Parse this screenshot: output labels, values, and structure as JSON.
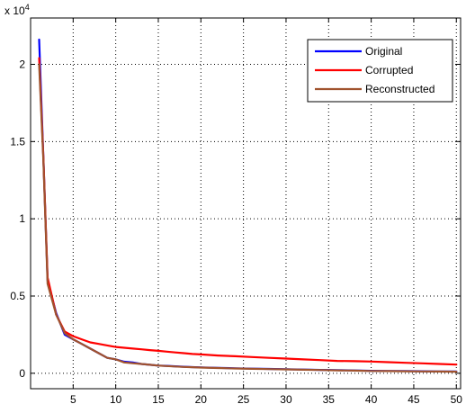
{
  "chart_data": {
    "type": "line",
    "title": "",
    "xlabel": "",
    "ylabel": "",
    "xlim": [
      0,
      50.5
    ],
    "ylim": [
      -1000,
      23000
    ],
    "x_ticks": [
      5,
      10,
      15,
      20,
      25,
      30,
      35,
      40,
      45,
      50
    ],
    "x_tick_labels": [
      "5",
      "10",
      "15",
      "20",
      "25",
      "30",
      "35",
      "40",
      "45",
      "50"
    ],
    "y_ticks": [
      0,
      5000,
      10000,
      15000,
      20000
    ],
    "y_tick_labels": [
      "0",
      "0.5",
      "1",
      "1.5",
      "2"
    ],
    "y_exponent_label": "x 10",
    "y_exponent_power": "4",
    "grid": true,
    "legend_position": "top-right",
    "x": [
      1,
      1.5,
      2,
      3,
      4,
      5,
      6,
      7,
      8,
      9,
      10,
      11,
      12,
      13,
      14,
      15,
      16,
      17,
      18,
      19,
      20,
      22,
      24,
      26,
      28,
      30,
      32,
      34,
      36,
      38,
      40,
      42,
      44,
      46,
      48,
      50
    ],
    "series": [
      {
        "name": "Original",
        "color": "#0000ff",
        "values": [
          21600,
          14000,
          6000,
          3900,
          2500,
          2200,
          1900,
          1600,
          1300,
          1000,
          900,
          750,
          700,
          600,
          550,
          500,
          480,
          450,
          420,
          400,
          380,
          350,
          320,
          300,
          280,
          260,
          240,
          220,
          200,
          180,
          160,
          150,
          140,
          130,
          120,
          110
        ]
      },
      {
        "name": "Corrupted",
        "color": "#ff0000",
        "values": [
          20400,
          14000,
          6200,
          3800,
          2700,
          2400,
          2200,
          2000,
          1900,
          1800,
          1700,
          1650,
          1600,
          1550,
          1500,
          1450,
          1400,
          1350,
          1300,
          1250,
          1220,
          1150,
          1100,
          1050,
          1000,
          950,
          900,
          850,
          800,
          780,
          760,
          720,
          680,
          640,
          600,
          560
        ]
      },
      {
        "name": "Reconstructed",
        "color": "#a0522d",
        "values": [
          20000,
          13800,
          5800,
          3800,
          2600,
          2200,
          1900,
          1600,
          1300,
          1000,
          900,
          700,
          650,
          600,
          550,
          500,
          470,
          440,
          410,
          390,
          370,
          340,
          310,
          290,
          270,
          250,
          230,
          210,
          190,
          170,
          150,
          140,
          130,
          120,
          110,
          100
        ]
      }
    ]
  }
}
